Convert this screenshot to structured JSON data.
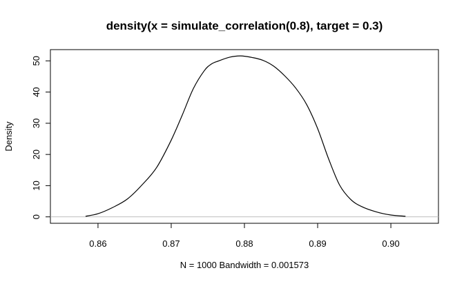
{
  "chart_data": {
    "type": "line",
    "title": "density(x = simulate_correlation(0.8), target = 0.3)",
    "xlabel": "N = 1000   Bandwidth = 0.001573",
    "ylabel": "Density",
    "xlim": [
      0.8535,
      0.9065
    ],
    "ylim": [
      -2.06,
      53.6
    ],
    "x_ticks": [
      0.86,
      0.87,
      0.88,
      0.89,
      0.9
    ],
    "x_tick_labels": [
      "0.86",
      "0.87",
      "0.88",
      "0.89",
      "0.90"
    ],
    "y_ticks": [
      0,
      10,
      20,
      30,
      40,
      50
    ],
    "y_tick_labels": [
      "0",
      "10",
      "20",
      "30",
      "40",
      "50"
    ],
    "zero_line": true,
    "grid": false,
    "colors": {
      "line": "#000000",
      "zero_line": "#bebebe",
      "frame": "#000000"
    },
    "series": [
      {
        "x": [
          0.8583,
          0.86,
          0.862,
          0.864,
          0.866,
          0.868,
          0.87,
          0.8715,
          0.873,
          0.8745,
          0.8755,
          0.8765,
          0.878,
          0.8795,
          0.881,
          0.8825,
          0.884,
          0.8855,
          0.887,
          0.8885,
          0.89,
          0.8915,
          0.893,
          0.8945,
          0.896,
          0.898,
          0.9,
          0.902
        ],
        "y": [
          0.2,
          1.0,
          3.0,
          5.7,
          10.2,
          15.8,
          24.6,
          32.6,
          41.0,
          46.8,
          49.0,
          50.0,
          51.2,
          51.6,
          51.1,
          50.2,
          48.3,
          45.2,
          41.3,
          36.0,
          28.3,
          18.6,
          10.2,
          5.6,
          3.3,
          1.6,
          0.6,
          0.2
        ]
      }
    ]
  }
}
